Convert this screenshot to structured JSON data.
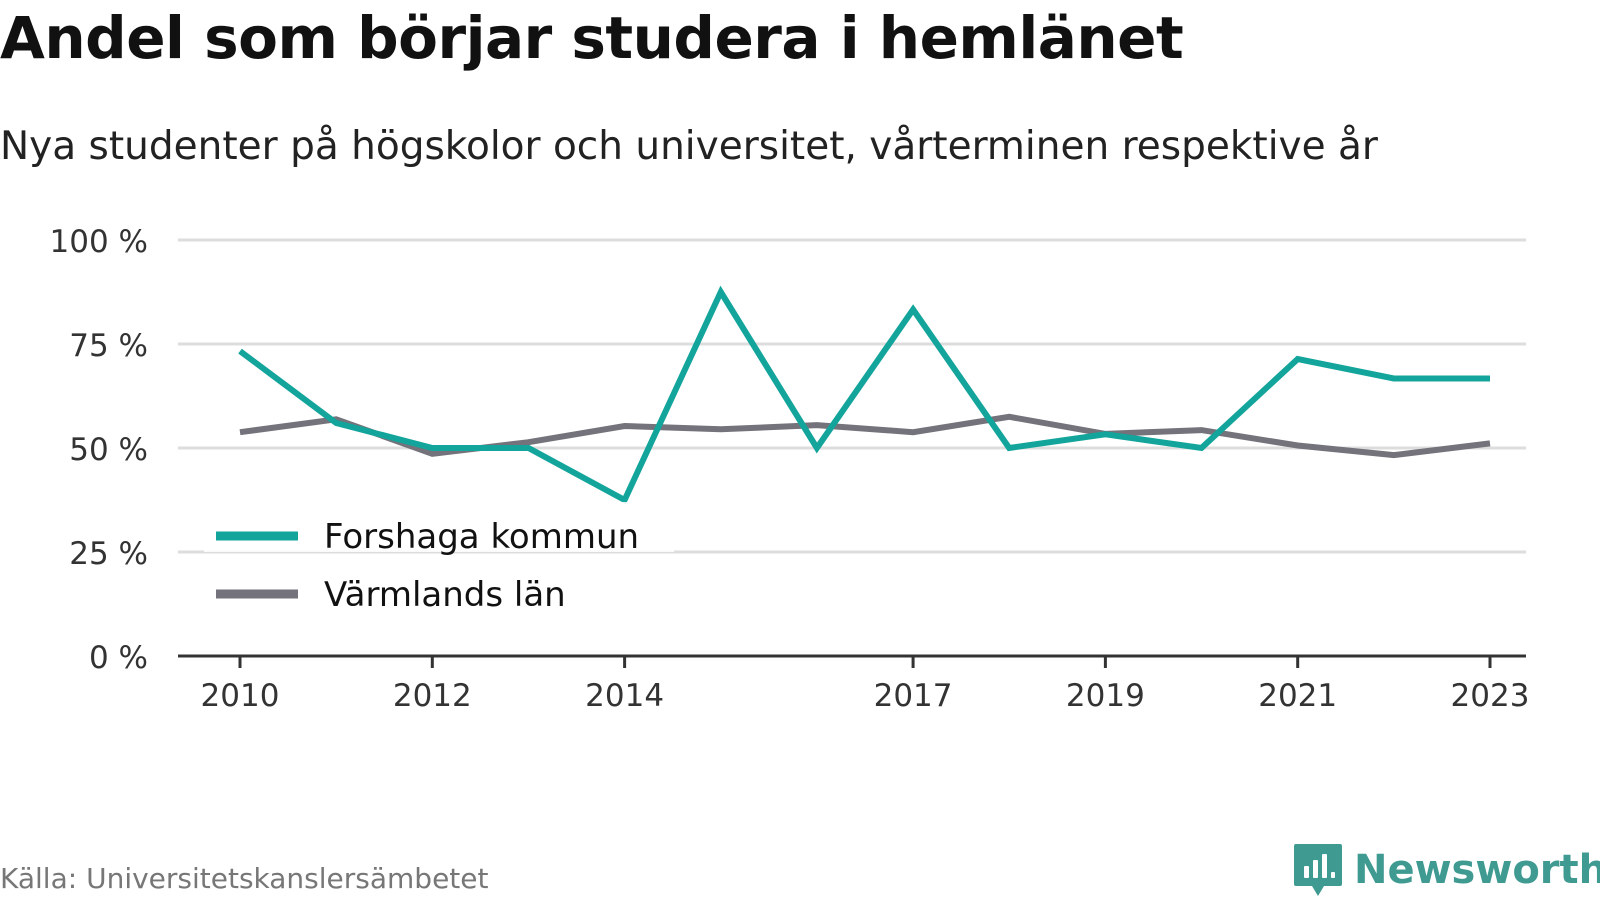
{
  "title": "Andel som börjar studera i hemlänet",
  "subtitle": "Nya studenter på högskolor och universitet, vårterminen respektive år",
  "source": "Källa: Universitetskanslersämbetet",
  "brand": {
    "name": "Newsworthy",
    "icon": "newsworthy-logo-icon",
    "color": "#3f9a91"
  },
  "colors": {
    "forshaga": "#13a59b",
    "varmland": "#74727a",
    "grid": "#dddddd",
    "axis": "#333333"
  },
  "chart_data": {
    "type": "line",
    "title": "",
    "xlabel": "",
    "ylabel": "",
    "x": [
      2010,
      2011,
      2012,
      2013,
      2014,
      2015,
      2016,
      2017,
      2018,
      2019,
      2020,
      2021,
      2022,
      2023
    ],
    "xticks": [
      "2010",
      "2012",
      "2014",
      "2017",
      "2019",
      "2021",
      "2023"
    ],
    "yticks": [
      {
        "value": 0,
        "label": "0 %"
      },
      {
        "value": 25,
        "label": "25 %"
      },
      {
        "value": 50,
        "label": "50 %"
      },
      {
        "value": 75,
        "label": "75 %"
      },
      {
        "value": 100,
        "label": "100 %"
      }
    ],
    "ylim": [
      0,
      100
    ],
    "grid": true,
    "legend_position": "bottom-left",
    "series": [
      {
        "name": "Forshaga kommun",
        "color": "#13a59b",
        "values": [
          73.3,
          56.0,
          50.0,
          50.0,
          37.5,
          87.5,
          50.0,
          83.3,
          50.0,
          53.3,
          50.0,
          71.4,
          66.7,
          66.7
        ]
      },
      {
        "name": "Värmlands län",
        "color": "#74727a",
        "values": [
          53.8,
          56.9,
          48.6,
          51.4,
          55.3,
          54.5,
          55.5,
          53.8,
          57.5,
          53.4,
          54.3,
          50.6,
          48.3,
          51.1
        ]
      }
    ]
  }
}
